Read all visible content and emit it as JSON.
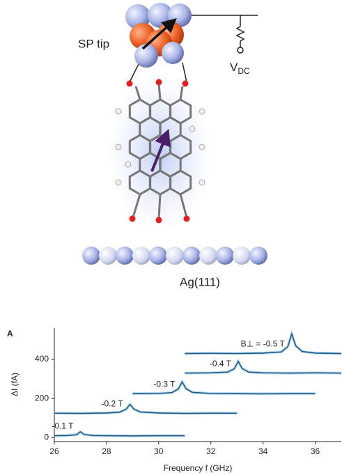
{
  "diagram": {
    "tip_label": "SP tip",
    "voltage_symbol": "V",
    "voltage_subscript": "DC",
    "substrate_label": "Ag(111)"
  },
  "chart_data": {
    "type": "line",
    "panel_label": "A",
    "x_label": "Frequency f (GHz)",
    "y_label": "ΔI (fA)",
    "xlim": [
      26,
      37
    ],
    "ylim": [
      -20,
      560
    ],
    "xticks": [
      26,
      28,
      30,
      32,
      34,
      36
    ],
    "yticks": [
      0,
      200,
      400
    ],
    "series": [
      {
        "name": "-0.1 T",
        "color": "#1d5a85",
        "x": [
          26,
          26.5,
          26.85,
          27,
          27.15,
          27.5,
          28,
          29,
          30,
          31
        ],
        "values": [
          10,
          11,
          15,
          30,
          16,
          11,
          10,
          9,
          10,
          10
        ]
      },
      {
        "name": "-0.2 T",
        "color": "#1d5a85",
        "x": [
          26,
          27,
          28,
          28.5,
          28.75,
          28.9,
          29.05,
          29.3,
          30,
          31,
          32,
          33
        ],
        "values": [
          125,
          124,
          126,
          130,
          145,
          170,
          146,
          131,
          126,
          124,
          125,
          125
        ]
      },
      {
        "name": "-0.3 T",
        "color": "#1d5a85",
        "x": [
          29,
          30,
          30.5,
          30.75,
          30.9,
          31.05,
          31.3,
          32,
          33,
          34,
          35,
          36
        ],
        "values": [
          225,
          226,
          230,
          248,
          285,
          250,
          231,
          226,
          225,
          224,
          225,
          225
        ]
      },
      {
        "name": "-0.4 T",
        "color": "#1d5a85",
        "x": [
          31,
          32,
          32.65,
          32.9,
          33.05,
          33.2,
          33.45,
          34,
          35,
          36,
          37
        ],
        "values": [
          330,
          331,
          335,
          352,
          390,
          353,
          335,
          331,
          330,
          331,
          330
        ]
      },
      {
        "name": "B⊥ = -0.5 T",
        "color": "#1d5a85",
        "x": [
          31,
          32,
          33,
          34,
          34.7,
          34.95,
          35.1,
          35.25,
          35.5,
          36,
          37
        ],
        "values": [
          430,
          431,
          430,
          432,
          438,
          465,
          530,
          470,
          440,
          432,
          430
        ]
      }
    ]
  }
}
